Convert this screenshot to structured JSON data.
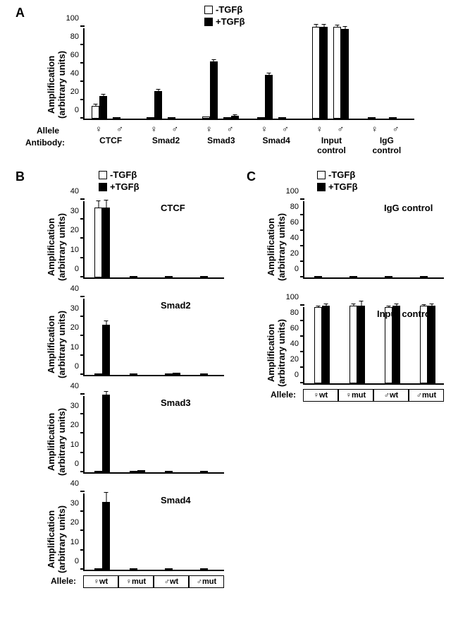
{
  "figure": {
    "background_color": "#ffffff",
    "tgfb_minus_label": "-TGFβ",
    "tgfb_plus_label": "+TGFβ",
    "allele_label": "Allele",
    "antibody_label": "Antibody:",
    "y_axis_label_main": "Amplification",
    "y_axis_label_sub": "(arbitrary units)",
    "female_symbol": "♀",
    "male_symbol": "♂"
  },
  "panelA": {
    "label": "A",
    "y_max": 100,
    "y_tick_step": 20,
    "y_ticks": [
      0,
      20,
      40,
      60,
      80,
      100
    ],
    "bar_color_minus": "#ffffff",
    "bar_color_plus": "#000000",
    "bar_border": "#000000",
    "categories": [
      {
        "name": "CTCF",
        "female_minus": 14,
        "female_plus": 25,
        "male_minus": 0,
        "male_plus": 0,
        "female_minus_err": 3,
        "female_plus_err": 2
      },
      {
        "name": "Smad2",
        "female_minus": 0,
        "female_plus": 30,
        "male_minus": 0,
        "male_plus": 0,
        "female_plus_err": 2
      },
      {
        "name": "Smad3",
        "female_minus": 2,
        "female_plus": 62,
        "male_minus": 0,
        "male_plus": 3,
        "female_plus_err": 3,
        "male_plus_err": 2
      },
      {
        "name": "Smad4",
        "female_minus": 0,
        "female_plus": 48,
        "male_minus": 0,
        "male_plus": 0,
        "female_plus_err": 2
      },
      {
        "name": "Input control",
        "female_minus": 100,
        "female_plus": 100,
        "male_minus": 100,
        "male_plus": 98,
        "female_minus_err": 4,
        "female_plus_err": 3,
        "male_minus_err": 3,
        "male_plus_err": 3
      },
      {
        "name": "IgG control",
        "female_minus": 0,
        "female_plus": 0,
        "male_minus": 0,
        "male_plus": 0
      }
    ]
  },
  "panelB": {
    "label": "B",
    "y_max": 40,
    "y_ticks": [
      0,
      10,
      20,
      30,
      40
    ],
    "allele_labels": [
      "♀wt",
      "♀mut",
      "♂wt",
      "♂mut"
    ],
    "charts": [
      {
        "title": "CTCF",
        "values_minus": [
          36,
          0,
          0,
          0
        ],
        "values_plus": [
          36,
          0,
          0,
          0
        ],
        "err_minus": [
          4,
          0,
          0,
          0
        ],
        "err_plus": [
          4,
          0,
          0,
          0
        ]
      },
      {
        "title": "Smad2",
        "values_minus": [
          0,
          0,
          0,
          0
        ],
        "values_plus": [
          26,
          0,
          1,
          0
        ],
        "err_plus": [
          2,
          0,
          0,
          0
        ]
      },
      {
        "title": "Smad3",
        "values_minus": [
          0,
          0,
          0,
          0
        ],
        "values_plus": [
          40,
          1,
          0,
          0
        ],
        "err_plus": [
          2,
          0,
          0,
          0
        ]
      },
      {
        "title": "Smad4",
        "values_minus": [
          0,
          0,
          0,
          0
        ],
        "values_plus": [
          35,
          0,
          0,
          0
        ],
        "err_plus": [
          5,
          0,
          0,
          0
        ]
      }
    ]
  },
  "panelC": {
    "label": "C",
    "y_max": 100,
    "y_ticks": [
      0,
      20,
      40,
      60,
      80,
      100
    ],
    "allele_labels": [
      "♀wt",
      "♀mut",
      "♂wt",
      "♂mut"
    ],
    "charts": [
      {
        "title": "IgG control",
        "values_minus": [
          0,
          0,
          0,
          0
        ],
        "values_plus": [
          0,
          0,
          0,
          0
        ]
      },
      {
        "title": "Input control",
        "values_minus": [
          98,
          100,
          98,
          100
        ],
        "values_plus": [
          100,
          100,
          100,
          100
        ],
        "err_minus": [
          3,
          4,
          3,
          3
        ],
        "err_plus": [
          3,
          6,
          3,
          3
        ]
      }
    ]
  }
}
